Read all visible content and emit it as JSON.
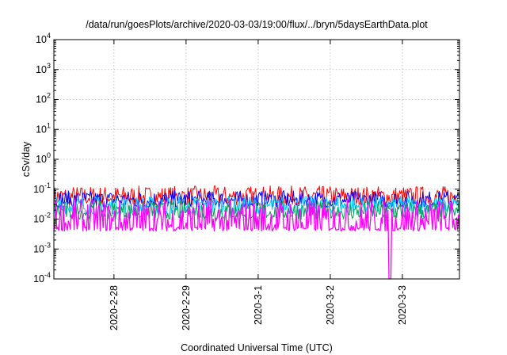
{
  "chart_data": {
    "type": "line",
    "title": "/data/run/goesPlots/archive/2020-03-03/19:00/flux/../bryn/5daysEarthData.plot",
    "xlabel": "Coordinated Universal Time (UTC)",
    "ylabel": "cSv/day",
    "yscale": "log",
    "ylim": [
      0.0001,
      10000
    ],
    "xlim": [
      "2020-02-27T04:00",
      "2020-03-03T19:00"
    ],
    "grid": true,
    "y_ticks": [
      {
        "base": "10",
        "exp": "-4"
      },
      {
        "base": "10",
        "exp": "-3"
      },
      {
        "base": "10",
        "exp": "-2"
      },
      {
        "base": "10",
        "exp": "-1"
      },
      {
        "base": "10",
        "exp": "0"
      },
      {
        "base": "10",
        "exp": "1"
      },
      {
        "base": "10",
        "exp": "2"
      },
      {
        "base": "10",
        "exp": "3"
      },
      {
        "base": "10",
        "exp": "4"
      }
    ],
    "x_ticks": [
      "2020-2-28",
      "2020-2-29",
      "2020-3-1",
      "2020-3-2",
      "2020-3-3"
    ],
    "series": [
      {
        "color": "#ff0000",
        "band": [
          0.03,
          0.13
        ]
      },
      {
        "color": "#0000ff",
        "band": [
          0.025,
          0.09
        ]
      },
      {
        "color": "#00c8ff",
        "band": [
          0.015,
          0.06
        ]
      },
      {
        "color": "#00a050",
        "band": [
          0.01,
          0.04
        ]
      },
      {
        "color": "#ff00ff",
        "band": [
          0.004,
          0.05
        ],
        "dropout_at": "2020-03-02T20:00",
        "dropout_min": 0.0001
      }
    ]
  }
}
